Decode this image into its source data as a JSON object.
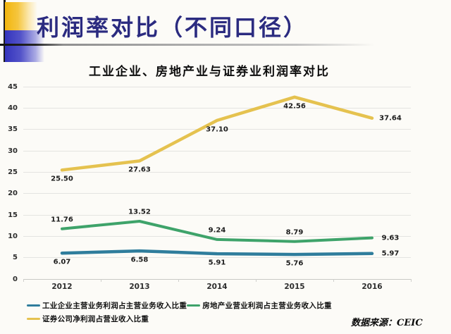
{
  "slide": {
    "title": "利润率对比（不同口径）",
    "source_note": "数据来源：CEIC"
  },
  "colors": {
    "title_navy": "#2B2B80",
    "deco_yellow": "#F2B50D",
    "deco_blue": "#3434BD",
    "industrial_line": "#2F7D9C",
    "realestate_line": "#3EA36A",
    "securities_line": "#E5C24F"
  },
  "chart_data": {
    "type": "line",
    "title": "工业企业、房地产业与证券业利润率对比",
    "categories": [
      "2012",
      "2013",
      "2014",
      "2015",
      "2016"
    ],
    "yticks": [
      45,
      40,
      35,
      30,
      25,
      20,
      15,
      10,
      5,
      0
    ],
    "ylim": [
      0,
      45
    ],
    "grid": true,
    "legend_position": "bottom",
    "series": [
      {
        "name": "工业企业主营业务利润占主营业务收入比重",
        "color": "#2F7D9C",
        "values": [
          6.07,
          6.58,
          5.91,
          5.76,
          5.97
        ],
        "labels": [
          "6.07",
          "6.58",
          "5.91",
          "5.76",
          "5.97"
        ],
        "label_side": "below"
      },
      {
        "name": "房地产业营业利润占主营业务收入比重",
        "color": "#3EA36A",
        "values": [
          11.76,
          13.52,
          9.24,
          8.79,
          9.63
        ],
        "labels": [
          "11.76",
          "13.52",
          "9.24",
          "8.79",
          "9.63"
        ],
        "label_side": "above"
      },
      {
        "name": "证券公司净利润占营业收入比重",
        "color": "#E5C24F",
        "values": [
          25.5,
          27.63,
          37.1,
          42.56,
          37.64
        ],
        "labels": [
          "25.50",
          "27.63",
          "37.10",
          "42.56",
          "37.64"
        ],
        "label_side": "below"
      }
    ]
  }
}
